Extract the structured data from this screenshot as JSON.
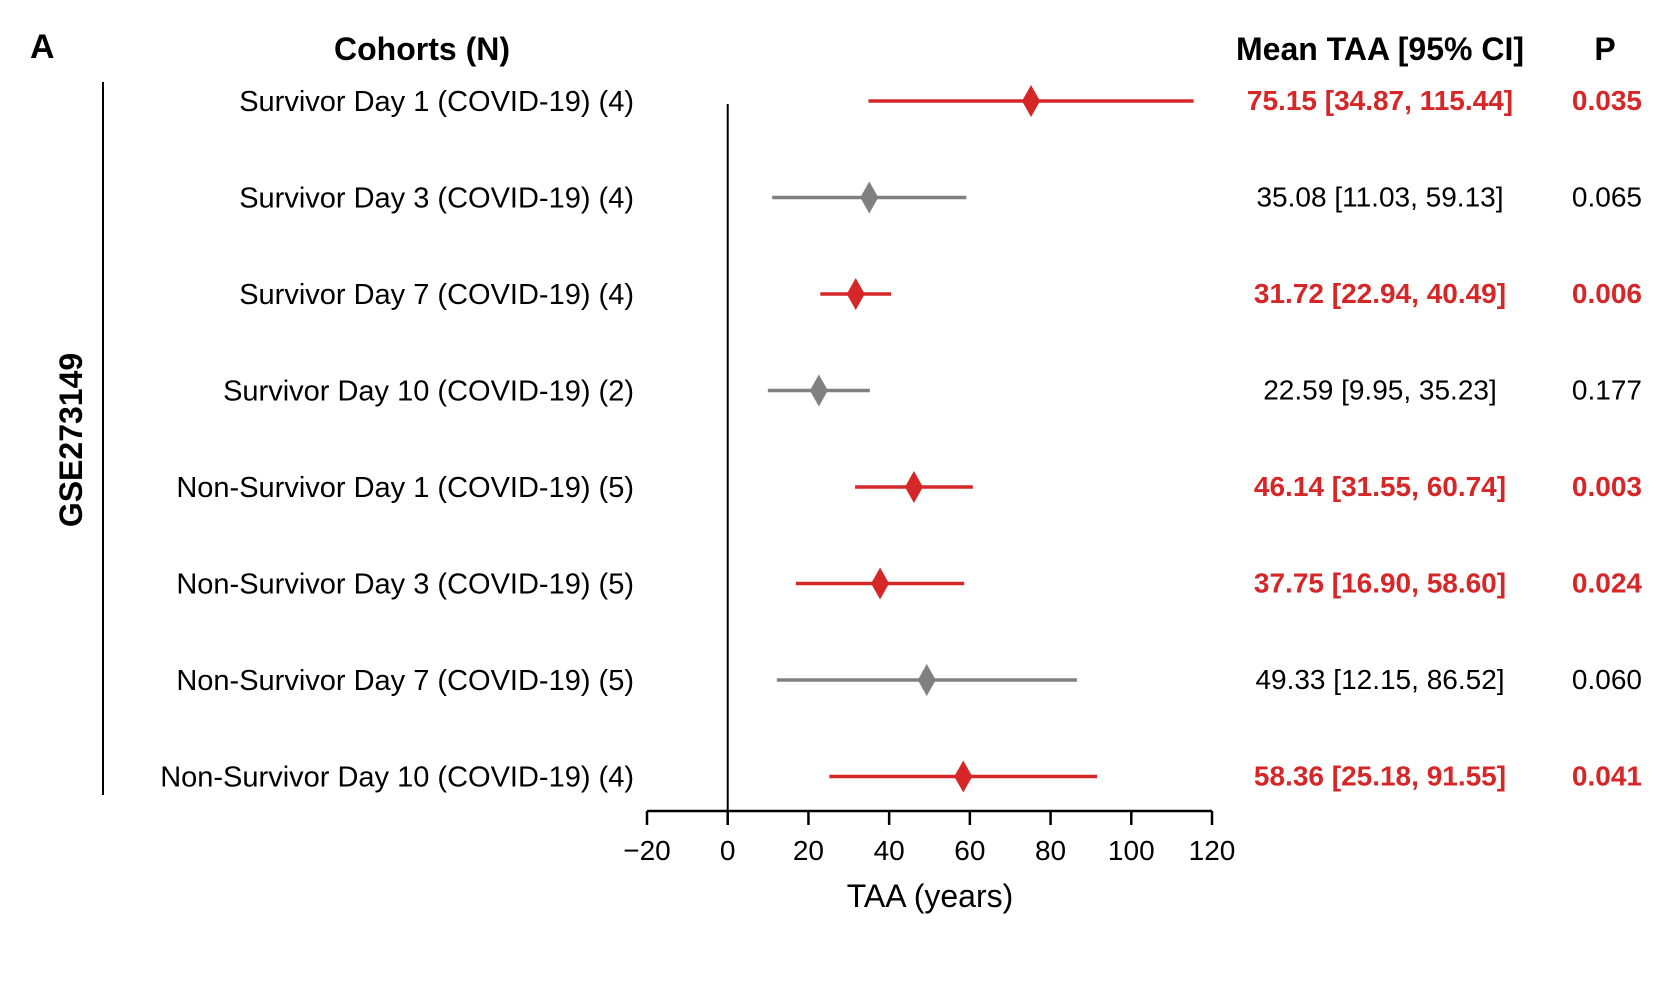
{
  "panel_label": "A",
  "chart_data": {
    "type": "forest",
    "headers": {
      "cohort": "Cohorts (N)",
      "ci": "Mean TAA [95% CI]",
      "p": "P"
    },
    "group_label": "GSE273149",
    "xlabel": "TAA (years)",
    "xlim": [
      -20,
      120
    ],
    "xticks": [
      -20,
      0,
      20,
      40,
      60,
      80,
      100,
      120
    ],
    "xtick_labels": [
      "−20",
      "0",
      "20",
      "40",
      "60",
      "80",
      "100",
      "120"
    ],
    "reference_line": 0,
    "colors": {
      "significant": "#d62728",
      "nonsignificant": "#808080"
    },
    "rows": [
      {
        "cohort": "Survivor Day 1 (COVID-19) (4)",
        "mean": 75.15,
        "lower": 34.87,
        "upper": 115.44,
        "ci_text": "75.15 [34.87, 115.44]",
        "p": "0.035",
        "significant": true
      },
      {
        "cohort": "Survivor Day 3 (COVID-19) (4)",
        "mean": 35.08,
        "lower": 11.03,
        "upper": 59.13,
        "ci_text": "35.08 [11.03, 59.13]",
        "p": "0.065",
        "significant": false
      },
      {
        "cohort": "Survivor Day 7 (COVID-19) (4)",
        "mean": 31.72,
        "lower": 22.94,
        "upper": 40.49,
        "ci_text": "31.72 [22.94, 40.49]",
        "p": "0.006",
        "significant": true
      },
      {
        "cohort": "Survivor Day 10 (COVID-19) (2)",
        "mean": 22.59,
        "lower": 9.95,
        "upper": 35.23,
        "ci_text": "22.59 [9.95, 35.23]",
        "p": "0.177",
        "significant": false
      },
      {
        "cohort": "Non-Survivor Day 1 (COVID-19) (5)",
        "mean": 46.14,
        "lower": 31.55,
        "upper": 60.74,
        "ci_text": "46.14 [31.55, 60.74]",
        "p": "0.003",
        "significant": true
      },
      {
        "cohort": "Non-Survivor Day 3 (COVID-19) (5)",
        "mean": 37.75,
        "lower": 16.9,
        "upper": 58.6,
        "ci_text": "37.75 [16.90, 58.60]",
        "p": "0.024",
        "significant": true
      },
      {
        "cohort": "Non-Survivor Day 7 (COVID-19) (5)",
        "mean": 49.33,
        "lower": 12.15,
        "upper": 86.52,
        "ci_text": "49.33 [12.15, 86.52]",
        "p": "0.060",
        "significant": false
      },
      {
        "cohort": "Non-Survivor Day 10 (COVID-19) (4)",
        "mean": 58.36,
        "lower": 25.18,
        "upper": 91.55,
        "ci_text": "58.36 [25.18, 91.55]",
        "p": "0.041",
        "significant": true
      }
    ]
  }
}
